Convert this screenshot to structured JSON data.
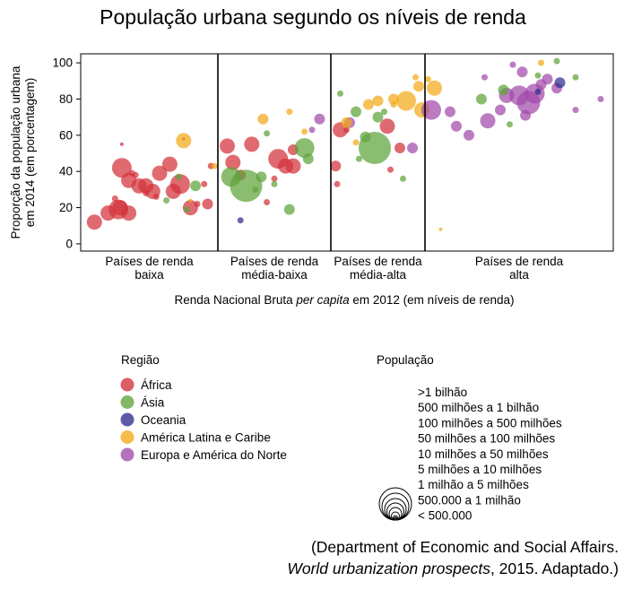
{
  "chart_data": {
    "type": "scatter",
    "title": "População urbana segundo os níveis de renda",
    "ylabel_lines": [
      "Proporção da população urbana",
      "em 2014 (em porcentagem)"
    ],
    "xlabel_parts": [
      "Renda Nacional Bruta ",
      "per capita",
      " em 2012 (em níveis de renda)"
    ],
    "ylim": [
      -4,
      105
    ],
    "yticks": [
      "0",
      "20",
      "40",
      "60",
      "80",
      "100"
    ],
    "grid": false,
    "groups": [
      {
        "key": "baixa",
        "lines": [
          "Países de renda",
          "baixa"
        ],
        "range": [
          0,
          4
        ]
      },
      {
        "key": "media-baixa",
        "lines": [
          "Países de renda",
          "média-baixa"
        ],
        "range": [
          4,
          7
        ]
      },
      {
        "key": "media-alta",
        "lines": [
          "Países de renda",
          "média-alta"
        ],
        "range": [
          7,
          10
        ]
      },
      {
        "key": "alta",
        "lines": [
          "Países de renda",
          "alta"
        ],
        "range": [
          10,
          16
        ]
      }
    ],
    "regions": [
      {
        "key": "africa",
        "label": "África",
        "color": "#d2323a"
      },
      {
        "key": "asia",
        "label": "Ásia",
        "color": "#5ea33a"
      },
      {
        "key": "oceania",
        "label": "Oceania",
        "color": "#2e2d8c"
      },
      {
        "key": "latam",
        "label": "América Latina e Caribe",
        "color": "#f2a917"
      },
      {
        "key": "europa",
        "label": "Europa e América do Norte",
        "color": "#a24aaa"
      }
    ],
    "region_title": "Região",
    "population_title": "População",
    "population_classes": [
      {
        "label": ">1 bilhão",
        "r": 18
      },
      {
        "label": "500 milhões a 1 bilhão",
        "r": 15
      },
      {
        "label": "100 milhões a 500 milhões",
        "r": 12
      },
      {
        "label": "50 milhões a 100 milhões",
        "r": 9.5
      },
      {
        "label": "10 milhões a 50 milhões",
        "r": 7
      },
      {
        "label": "5 milhões a 10 milhões",
        "r": 4.5
      },
      {
        "label": "1 milhão a 5 milhões",
        "r": 2.5
      },
      {
        "label": "500.000 a 1 milhão",
        "r": 1.6
      },
      {
        "label": "< 500.000",
        "r": 1
      }
    ],
    "points": [
      {
        "x": 0.4,
        "y": 12,
        "r": 4,
        "region": "africa"
      },
      {
        "x": 0.8,
        "y": 17,
        "r": 4,
        "region": "africa"
      },
      {
        "x": 1.1,
        "y": 19,
        "r": 5,
        "region": "africa"
      },
      {
        "x": 1.15,
        "y": 20,
        "r": 4,
        "region": "africa"
      },
      {
        "x": 1.4,
        "y": 17,
        "r": 4,
        "region": "africa"
      },
      {
        "x": 1.0,
        "y": 25,
        "r": 2,
        "region": "africa"
      },
      {
        "x": 1.2,
        "y": 42,
        "r": 5,
        "region": "africa"
      },
      {
        "x": 1.5,
        "y": 39,
        "r": 2,
        "region": "africa"
      },
      {
        "x": 1.6,
        "y": 38,
        "r": 2,
        "region": "africa"
      },
      {
        "x": 1.7,
        "y": 32,
        "r": 4,
        "region": "africa"
      },
      {
        "x": 1.4,
        "y": 35,
        "r": 4,
        "region": "africa"
      },
      {
        "x": 1.9,
        "y": 32,
        "r": 4,
        "region": "africa"
      },
      {
        "x": 2.1,
        "y": 29,
        "r": 4,
        "region": "africa"
      },
      {
        "x": 2.3,
        "y": 39,
        "r": 4,
        "region": "africa"
      },
      {
        "x": 2.6,
        "y": 44,
        "r": 4,
        "region": "africa"
      },
      {
        "x": 2.7,
        "y": 29,
        "r": 4,
        "region": "africa"
      },
      {
        "x": 2.9,
        "y": 33,
        "r": 5,
        "region": "africa"
      },
      {
        "x": 3.2,
        "y": 20,
        "r": 4,
        "region": "africa"
      },
      {
        "x": 3.4,
        "y": 22,
        "r": 2,
        "region": "africa"
      },
      {
        "x": 3.7,
        "y": 22,
        "r": 3,
        "region": "africa"
      },
      {
        "x": 3.6,
        "y": 33,
        "r": 2,
        "region": "africa"
      },
      {
        "x": 1.9,
        "y": 28,
        "r": 2,
        "region": "africa"
      },
      {
        "x": 2.2,
        "y": 26,
        "r": 2,
        "region": "africa"
      },
      {
        "x": 1.2,
        "y": 55,
        "r": 1,
        "region": "africa"
      },
      {
        "x": 3.0,
        "y": 58,
        "r": 1,
        "region": "africa"
      },
      {
        "x": 3.8,
        "y": 43,
        "r": 2,
        "region": "africa"
      },
      {
        "x": 3.1,
        "y": 19,
        "r": 2,
        "region": "asia"
      },
      {
        "x": 3.35,
        "y": 32,
        "r": 3,
        "region": "asia"
      },
      {
        "x": 2.85,
        "y": 37,
        "r": 2,
        "region": "asia"
      },
      {
        "x": 2.5,
        "y": 24,
        "r": 2,
        "region": "asia"
      },
      {
        "x": 3.0,
        "y": 57,
        "r": 4,
        "region": "latam"
      },
      {
        "x": 3.2,
        "y": 24,
        "r": 1,
        "region": "latam"
      },
      {
        "x": 3.9,
        "y": 43,
        "r": 2,
        "region": "latam"
      },
      {
        "x": 4.25,
        "y": 54,
        "r": 4,
        "region": "africa"
      },
      {
        "x": 4.4,
        "y": 45,
        "r": 4,
        "region": "africa"
      },
      {
        "x": 4.9,
        "y": 55,
        "r": 4,
        "region": "africa"
      },
      {
        "x": 5.6,
        "y": 47,
        "r": 5,
        "region": "africa"
      },
      {
        "x": 5.8,
        "y": 43,
        "r": 4,
        "region": "africa"
      },
      {
        "x": 6.0,
        "y": 43,
        "r": 4,
        "region": "africa"
      },
      {
        "x": 6.0,
        "y": 52,
        "r": 3,
        "region": "africa"
      },
      {
        "x": 5.5,
        "y": 36,
        "r": 2,
        "region": "africa"
      },
      {
        "x": 4.6,
        "y": 38,
        "r": 3,
        "region": "africa"
      },
      {
        "x": 5.3,
        "y": 23,
        "r": 2,
        "region": "africa"
      },
      {
        "x": 4.35,
        "y": 37,
        "r": 5,
        "region": "asia"
      },
      {
        "x": 4.75,
        "y": 32,
        "r": 8,
        "region": "asia"
      },
      {
        "x": 5.15,
        "y": 37,
        "r": 3,
        "region": "asia"
      },
      {
        "x": 6.3,
        "y": 53,
        "r": 5,
        "region": "asia"
      },
      {
        "x": 6.4,
        "y": 47,
        "r": 3,
        "region": "asia"
      },
      {
        "x": 5.0,
        "y": 30,
        "r": 2,
        "region": "asia"
      },
      {
        "x": 5.9,
        "y": 19,
        "r": 3,
        "region": "asia"
      },
      {
        "x": 5.5,
        "y": 33,
        "r": 2,
        "region": "asia"
      },
      {
        "x": 5.3,
        "y": 61,
        "r": 2,
        "region": "asia"
      },
      {
        "x": 4.6,
        "y": 13,
        "r": 2,
        "region": "oceania"
      },
      {
        "x": 5.2,
        "y": 69,
        "r": 3,
        "region": "latam"
      },
      {
        "x": 5.9,
        "y": 73,
        "r": 2,
        "region": "latam"
      },
      {
        "x": 6.3,
        "y": 62,
        "r": 2,
        "region": "latam"
      },
      {
        "x": 6.7,
        "y": 69,
        "r": 3,
        "region": "europa"
      },
      {
        "x": 6.5,
        "y": 63,
        "r": 2,
        "region": "europa"
      },
      {
        "x": 7.3,
        "y": 63,
        "r": 4,
        "region": "africa"
      },
      {
        "x": 7.15,
        "y": 43,
        "r": 3,
        "region": "africa"
      },
      {
        "x": 7.5,
        "y": 63,
        "r": 2,
        "region": "africa"
      },
      {
        "x": 8.8,
        "y": 65,
        "r": 4,
        "region": "africa"
      },
      {
        "x": 9.2,
        "y": 53,
        "r": 3,
        "region": "africa"
      },
      {
        "x": 8.9,
        "y": 41,
        "r": 2,
        "region": "africa"
      },
      {
        "x": 7.2,
        "y": 33,
        "r": 2,
        "region": "africa"
      },
      {
        "x": 8.4,
        "y": 53,
        "r": 8,
        "region": "asia"
      },
      {
        "x": 7.8,
        "y": 73,
        "r": 3,
        "region": "asia"
      },
      {
        "x": 7.3,
        "y": 83,
        "r": 2,
        "region": "asia"
      },
      {
        "x": 8.1,
        "y": 59,
        "r": 3,
        "region": "asia"
      },
      {
        "x": 8.5,
        "y": 70,
        "r": 3,
        "region": "asia"
      },
      {
        "x": 8.7,
        "y": 73,
        "r": 2,
        "region": "asia"
      },
      {
        "x": 7.9,
        "y": 47,
        "r": 2,
        "region": "asia"
      },
      {
        "x": 9.3,
        "y": 36,
        "r": 2,
        "region": "asia"
      },
      {
        "x": 9.6,
        "y": 53,
        "r": 3,
        "region": "europa"
      },
      {
        "x": 7.6,
        "y": 67,
        "r": 3,
        "region": "europa"
      },
      {
        "x": 8.2,
        "y": 77,
        "r": 3,
        "region": "latam"
      },
      {
        "x": 8.5,
        "y": 79,
        "r": 3,
        "region": "latam"
      },
      {
        "x": 9.0,
        "y": 80,
        "r": 3,
        "region": "latam"
      },
      {
        "x": 9.4,
        "y": 79,
        "r": 5,
        "region": "latam"
      },
      {
        "x": 9.8,
        "y": 87,
        "r": 3,
        "region": "latam"
      },
      {
        "x": 9.9,
        "y": 74,
        "r": 4,
        "region": "latam"
      },
      {
        "x": 7.8,
        "y": 56,
        "r": 2,
        "region": "latam"
      },
      {
        "x": 7.5,
        "y": 67,
        "r": 3,
        "region": "latam"
      },
      {
        "x": 9.0,
        "y": 77,
        "r": 2,
        "region": "latam"
      },
      {
        "x": 10.3,
        "y": 86,
        "r": 4,
        "region": "latam"
      },
      {
        "x": 10.1,
        "y": 91,
        "r": 2,
        "region": "latam"
      },
      {
        "x": 9.7,
        "y": 92,
        "r": 2,
        "region": "latam"
      },
      {
        "x": 13.7,
        "y": 100,
        "r": 2,
        "region": "latam"
      },
      {
        "x": 10.2,
        "y": 74,
        "r": 5,
        "region": "europa"
      },
      {
        "x": 10.8,
        "y": 73,
        "r": 3,
        "region": "europa"
      },
      {
        "x": 11.0,
        "y": 65,
        "r": 3,
        "region": "europa"
      },
      {
        "x": 11.4,
        "y": 60,
        "r": 3,
        "region": "europa"
      },
      {
        "x": 12.0,
        "y": 68,
        "r": 4,
        "region": "europa"
      },
      {
        "x": 12.4,
        "y": 74,
        "r": 3,
        "region": "europa"
      },
      {
        "x": 12.6,
        "y": 82,
        "r": 4,
        "region": "europa"
      },
      {
        "x": 13.0,
        "y": 82,
        "r": 5,
        "region": "europa"
      },
      {
        "x": 13.3,
        "y": 78,
        "r": 6,
        "region": "europa"
      },
      {
        "x": 13.5,
        "y": 83,
        "r": 5,
        "region": "europa"
      },
      {
        "x": 13.7,
        "y": 88,
        "r": 3,
        "region": "europa"
      },
      {
        "x": 13.1,
        "y": 95,
        "r": 3,
        "region": "europa"
      },
      {
        "x": 13.9,
        "y": 91,
        "r": 3,
        "region": "europa"
      },
      {
        "x": 14.2,
        "y": 86,
        "r": 3,
        "region": "europa"
      },
      {
        "x": 13.2,
        "y": 71,
        "r": 3,
        "region": "europa"
      },
      {
        "x": 14.8,
        "y": 74,
        "r": 2,
        "region": "europa"
      },
      {
        "x": 15.6,
        "y": 80,
        "r": 2,
        "region": "europa"
      },
      {
        "x": 11.9,
        "y": 92,
        "r": 2,
        "region": "europa"
      },
      {
        "x": 12.8,
        "y": 99,
        "r": 2,
        "region": "europa"
      },
      {
        "x": 11.8,
        "y": 80,
        "r": 3,
        "region": "asia"
      },
      {
        "x": 12.5,
        "y": 85,
        "r": 3,
        "region": "asia"
      },
      {
        "x": 13.6,
        "y": 93,
        "r": 2,
        "region": "asia"
      },
      {
        "x": 14.2,
        "y": 101,
        "r": 2,
        "region": "asia"
      },
      {
        "x": 12.7,
        "y": 66,
        "r": 2,
        "region": "asia"
      },
      {
        "x": 14.8,
        "y": 92,
        "r": 2,
        "region": "asia"
      },
      {
        "x": 14.3,
        "y": 89,
        "r": 3,
        "region": "oceania"
      },
      {
        "x": 13.6,
        "y": 84,
        "r": 2,
        "region": "oceania"
      },
      {
        "x": 10.5,
        "y": 8,
        "r": 1,
        "region": "latam"
      }
    ]
  },
  "source": {
    "line1": "(Department of Economic and Social Affairs.",
    "line2_title": "World urbanization prospects",
    "line2_rest": ", 2015. Adaptado.)"
  }
}
